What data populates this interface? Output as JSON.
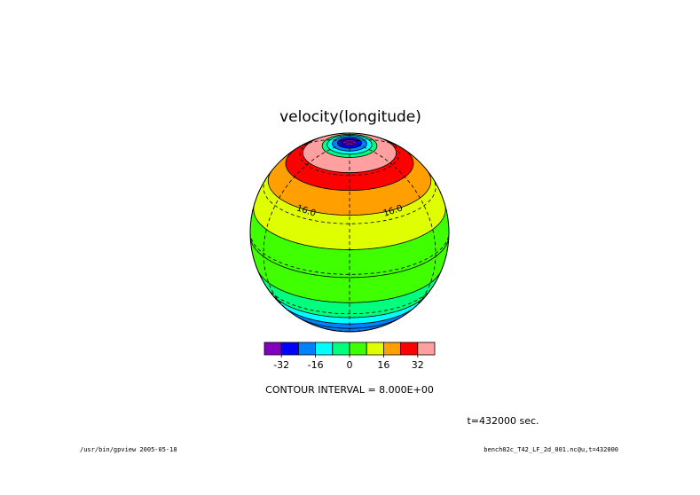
{
  "chart_data": {
    "type": "heatmap",
    "title": "velocity(longitude)",
    "projection": "orthographic",
    "colorbar": {
      "levels": [
        -40,
        -32,
        -24,
        -16,
        -8,
        0,
        8,
        16,
        24,
        32,
        40
      ],
      "colors": [
        "#7f00bf",
        "#0000ff",
        "#007fff",
        "#00ffff",
        "#00ff7f",
        "#3fff00",
        "#dfff00",
        "#ff9f00",
        "#ff0000",
        "#ff9f9f"
      ],
      "tick_labels": [
        "-32",
        "-16",
        "0",
        "16",
        "32"
      ],
      "tick_values": [
        -32,
        -16,
        0,
        16,
        32
      ]
    },
    "bands": [
      {
        "lat_from": 90,
        "lat_to": 86,
        "value": -36
      },
      {
        "lat_from": 86,
        "lat_to": 83,
        "value": -28
      },
      {
        "lat_from": 83,
        "lat_to": 80,
        "value": -20
      },
      {
        "lat_from": 80,
        "lat_to": 77,
        "value": -12
      },
      {
        "lat_from": 77,
        "lat_to": 74,
        "value": -4
      },
      {
        "lat_from": 74,
        "lat_to": 62,
        "value": 36
      },
      {
        "lat_from": 62,
        "lat_to": 50,
        "value": 28
      },
      {
        "lat_from": 50,
        "lat_to": 35,
        "value": 20
      },
      {
        "lat_from": 35,
        "lat_to": 15,
        "value": 12
      },
      {
        "lat_from": 15,
        "lat_to": -2,
        "value": 4
      },
      {
        "lat_from": -2,
        "lat_to": -20,
        "value": 4
      },
      {
        "lat_from": -20,
        "lat_to": -34,
        "value": -4
      },
      {
        "lat_from": -34,
        "lat_to": -42,
        "value": -12
      },
      {
        "lat_from": -42,
        "lat_to": -50,
        "value": -20
      }
    ],
    "contour_labels": [
      {
        "text": "16.0",
        "lat": 35,
        "lon": -32
      },
      {
        "text": "16.0",
        "lat": 35,
        "lon": 32
      }
    ],
    "contour_interval_text": "CONTOUR INTERVAL = 8.000E+00",
    "time_text": "t=432000 sec.",
    "footer_left": "/usr/bin/gpview  2005-05-18",
    "footer_right": "bench02c_T42_LF_2d_001.nc@u,t=432000"
  }
}
